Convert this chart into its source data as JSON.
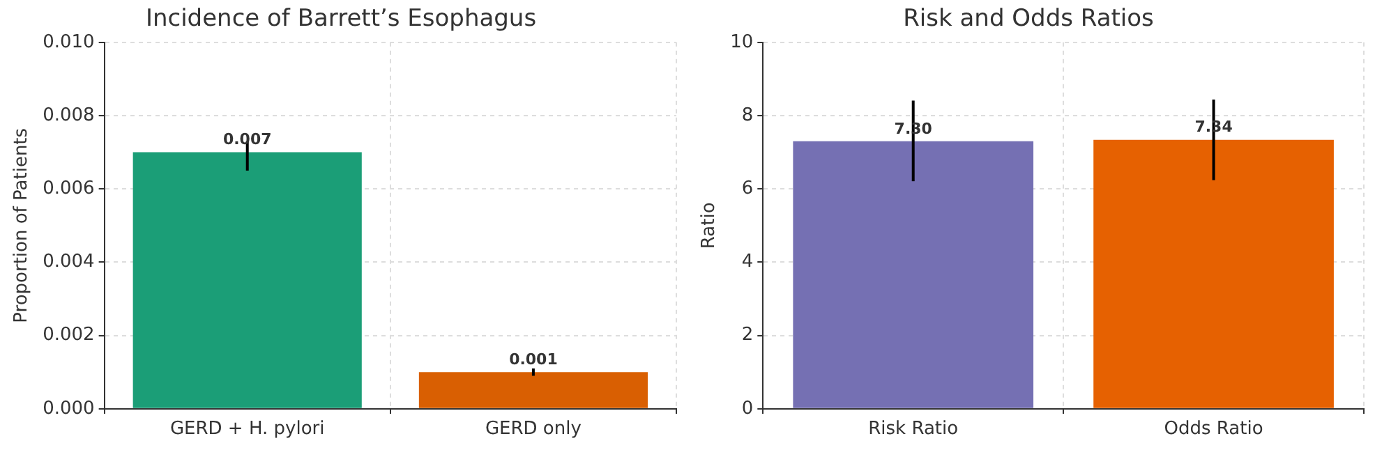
{
  "chart_data": [
    {
      "type": "bar",
      "title": "Incidence of Barrett’s Esophagus",
      "ylabel": "Proportion of Patients",
      "categories": [
        "GERD + H. pylori",
        "GERD only"
      ],
      "values": [
        0.007,
        0.001
      ],
      "colors": [
        "#1b9e77",
        "#d95f02"
      ],
      "errors": [
        [
          0.0065,
          0.0073
        ],
        [
          0.0009,
          0.0011
        ]
      ],
      "value_labels": [
        "0.007",
        "0.001"
      ],
      "ylim": [
        0,
        0.01
      ],
      "yticks": [
        {
          "value": 0,
          "label": "0.000"
        },
        {
          "value": 0.002,
          "label": "0.002"
        },
        {
          "value": 0.004,
          "label": "0.004"
        },
        {
          "value": 0.006,
          "label": "0.006"
        },
        {
          "value": 0.008,
          "label": "0.008"
        },
        {
          "value": 0.01,
          "label": "0.010"
        }
      ],
      "grid": true
    },
    {
      "type": "bar",
      "title": "Risk and Odds Ratios",
      "ylabel": "Ratio",
      "categories": [
        "Risk Ratio",
        "Odds Ratio"
      ],
      "values": [
        7.3,
        7.34
      ],
      "colors": [
        "#7570b3",
        "#e66101"
      ],
      "errors": [
        [
          6.21,
          8.41
        ],
        [
          6.24,
          8.44
        ]
      ],
      "value_labels": [
        "7.30",
        "7.34"
      ],
      "ylim": [
        0,
        10
      ],
      "yticks": [
        0,
        2,
        4,
        6,
        8,
        10
      ],
      "grid": true
    }
  ]
}
